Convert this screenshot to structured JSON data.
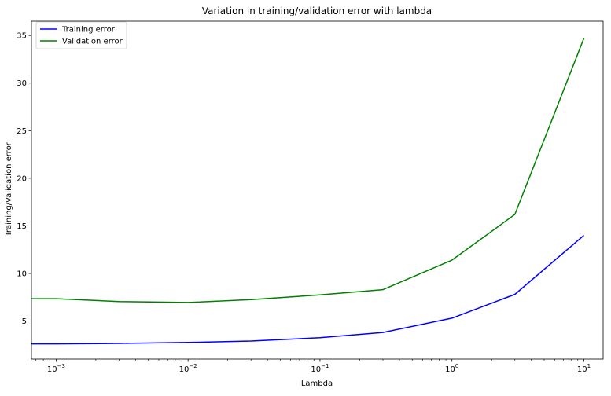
{
  "chart_data": {
    "type": "line",
    "title": "Variation in training/validation error with lambda",
    "xlabel": "Lambda",
    "ylabel": "Training/Validation error",
    "x_scale": "log",
    "x": [
      0,
      0.001,
      0.003,
      0.01,
      0.03,
      0.1,
      0.3,
      1,
      3,
      10
    ],
    "xlim_note": "left edge is at approx 6.5e-4",
    "xlim": [
      0.00065,
      14
    ],
    "ylim": [
      1.0,
      36.5
    ],
    "xticks": [
      {
        "value": 0.001,
        "base": "10",
        "exp": "−3"
      },
      {
        "value": 0.01,
        "base": "10",
        "exp": "−2"
      },
      {
        "value": 0.1,
        "base": "10",
        "exp": "−1"
      },
      {
        "value": 1,
        "base": "10",
        "exp": "0"
      },
      {
        "value": 10,
        "base": "10",
        "exp": "1"
      }
    ],
    "yticks": [
      5,
      10,
      15,
      20,
      25,
      30,
      35
    ],
    "series": [
      {
        "name": "Training error",
        "color": "#0000ff",
        "values": [
          2.6,
          2.6,
          2.65,
          2.75,
          2.9,
          3.25,
          3.8,
          5.3,
          7.8,
          14.0
        ]
      },
      {
        "name": "Validation error",
        "color": "#008000",
        "values": [
          7.35,
          7.35,
          7.05,
          6.95,
          7.25,
          7.75,
          8.3,
          11.4,
          16.2,
          34.7
        ]
      }
    ],
    "grid": false,
    "legend_position": "top-left"
  }
}
